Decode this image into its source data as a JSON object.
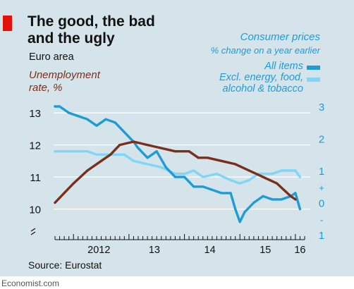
{
  "header": {
    "title_line1": "The good, the bad",
    "title_line2": "and the ugly",
    "subtitle": "Euro area"
  },
  "left_axis_title": {
    "line1": "Unemployment",
    "line2": "rate, %"
  },
  "right_axis_title": {
    "line1": "Consumer prices",
    "line2": "% change on a year earlier"
  },
  "legend": {
    "all_items": "All items",
    "excl_line1": "Excl. energy, food,",
    "excl_line2": "alcohol & tobacco"
  },
  "source": "Source: Eurostat",
  "footer": "Economist.com",
  "colors": {
    "unemployment": "#7a2f1a",
    "all_items": "#1f9cd6",
    "core": "#7fd6f7",
    "panel": "#d5e4eb",
    "brand_red": "#e3120b",
    "right_axis_text": "#1f9cd6"
  },
  "chart_data": {
    "type": "line",
    "x_unit": "month",
    "x_start": "2011-09",
    "x_end": "2016-03",
    "x_tick_labels": [
      "2012",
      "13",
      "14",
      "15",
      "16"
    ],
    "left_axis": {
      "ticks": [
        "13",
        "12",
        "11",
        "10"
      ],
      "range": [
        9.2,
        13.2
      ],
      "break_marker": true
    },
    "right_axis": {
      "ticks": [
        "3",
        "2",
        "1",
        "+",
        "0",
        "-",
        "1"
      ],
      "range": [
        -1.0,
        3.0
      ],
      "zero_marker": "+/−"
    },
    "gridlines": true,
    "series": [
      {
        "name": "Unemployment rate, %",
        "axis": "left",
        "x": [
          "2011-09",
          "2011-11",
          "2012-01",
          "2012-04",
          "2012-07",
          "2012-09",
          "2012-11",
          "2013-02",
          "2013-05",
          "2013-08",
          "2013-11",
          "2014-02",
          "2014-04",
          "2014-06",
          "2014-09",
          "2014-12",
          "2015-03",
          "2015-06",
          "2015-09",
          "2015-12",
          "2016-01"
        ],
        "values": [
          10.2,
          10.5,
          10.8,
          11.2,
          11.5,
          11.7,
          12.0,
          12.1,
          12.0,
          11.9,
          11.8,
          11.8,
          11.6,
          11.6,
          11.5,
          11.4,
          11.2,
          11.0,
          10.8,
          10.4,
          10.3
        ]
      },
      {
        "name": "All items",
        "axis": "right",
        "x": [
          "2011-09",
          "2011-10",
          "2011-12",
          "2012-02",
          "2012-04",
          "2012-06",
          "2012-08",
          "2012-10",
          "2012-12",
          "2013-02",
          "2013-03",
          "2013-05",
          "2013-07",
          "2013-09",
          "2013-11",
          "2014-01",
          "2014-03",
          "2014-05",
          "2014-07",
          "2014-09",
          "2014-11",
          "2014-12",
          "2015-01",
          "2015-02",
          "2015-04",
          "2015-06",
          "2015-08",
          "2015-10",
          "2015-12",
          "2016-01",
          "2016-02"
        ],
        "values": [
          3.0,
          3.0,
          2.8,
          2.7,
          2.6,
          2.4,
          2.6,
          2.5,
          2.2,
          1.9,
          1.7,
          1.4,
          1.6,
          1.1,
          0.8,
          0.8,
          0.5,
          0.5,
          0.4,
          0.3,
          0.3,
          -0.2,
          -0.6,
          -0.3,
          0.0,
          0.2,
          0.1,
          0.1,
          0.2,
          0.3,
          -0.2
        ]
      },
      {
        "name": "Excl. energy, food, alcohol & tobacco",
        "axis": "right",
        "x": [
          "2011-09",
          "2011-12",
          "2012-02",
          "2012-04",
          "2012-06",
          "2012-08",
          "2012-10",
          "2012-12",
          "2013-02",
          "2013-05",
          "2013-08",
          "2013-11",
          "2014-01",
          "2014-03",
          "2014-05",
          "2014-08",
          "2014-11",
          "2015-01",
          "2015-03",
          "2015-05",
          "2015-08",
          "2015-10",
          "2015-12",
          "2016-01",
          "2016-02"
        ],
        "values": [
          1.6,
          1.6,
          1.6,
          1.6,
          1.5,
          1.5,
          1.5,
          1.5,
          1.3,
          1.2,
          1.1,
          0.9,
          0.9,
          1.0,
          0.8,
          0.9,
          0.7,
          0.6,
          0.7,
          0.9,
          0.9,
          1.0,
          1.0,
          1.0,
          0.8
        ]
      }
    ]
  }
}
